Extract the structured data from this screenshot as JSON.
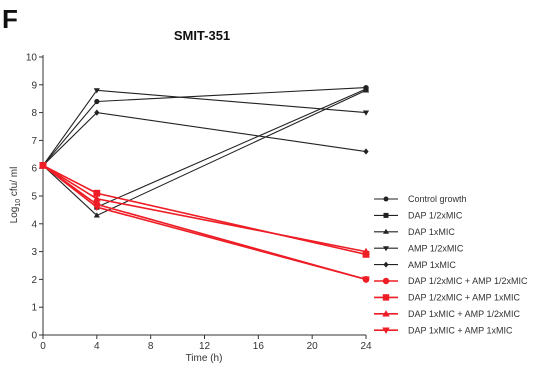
{
  "chart_data": {
    "type": "line",
    "panel_label": "F",
    "title": "SMIT-351",
    "xlabel": "Time (h)",
    "ylabel": "Log10 cfu/ ml",
    "ylabel_parts": {
      "base": "Log",
      "sub": "10",
      "rest": " cfu/ ml"
    },
    "xlim": [
      0,
      24
    ],
    "ylim": [
      0,
      10
    ],
    "xticks": [
      "0",
      "4",
      "8",
      "12",
      "16",
      "20",
      "24"
    ],
    "yticks": [
      "0",
      "1",
      "2",
      "3",
      "4",
      "5",
      "6",
      "7",
      "8",
      "9",
      "10"
    ],
    "legend_position": "right",
    "x": [
      0,
      4,
      24
    ],
    "series": [
      {
        "name": "Control growth",
        "color": "#222222",
        "marker": "circle",
        "values": [
          6.1,
          8.4,
          8.9
        ]
      },
      {
        "name": "DAP 1/2xMIC",
        "color": "#222222",
        "marker": "square",
        "values": [
          6.1,
          4.6,
          8.85
        ]
      },
      {
        "name": "DAP 1xMIC",
        "color": "#222222",
        "marker": "triangle-up",
        "values": [
          6.1,
          4.3,
          8.8
        ]
      },
      {
        "name": "AMP 1/2xMIC",
        "color": "#222222",
        "marker": "triangle-down",
        "values": [
          6.1,
          8.8,
          8.0
        ]
      },
      {
        "name": "AMP 1xMIC",
        "color": "#222222",
        "marker": "diamond",
        "values": [
          6.1,
          8.0,
          6.6
        ]
      },
      {
        "name": "DAP 1/2xMIC + AMP 1/2xMIC",
        "color": "#ee1c24",
        "marker": "circle",
        "values": [
          6.1,
          4.7,
          2.0
        ]
      },
      {
        "name": "DAP 1/2xMIC + AMP 1xMIC",
        "color": "#ee1c24",
        "marker": "square",
        "values": [
          6.1,
          5.1,
          2.9
        ]
      },
      {
        "name": "DAP 1xMIC + AMP 1/2xMIC",
        "color": "#ee1c24",
        "marker": "triangle-up",
        "values": [
          6.1,
          4.9,
          3.0
        ]
      },
      {
        "name": "DAP 1xMIC + AMP 1xMIC",
        "color": "#ee1c24",
        "marker": "triangle-down",
        "values": [
          6.1,
          4.6,
          2.0
        ]
      }
    ]
  }
}
